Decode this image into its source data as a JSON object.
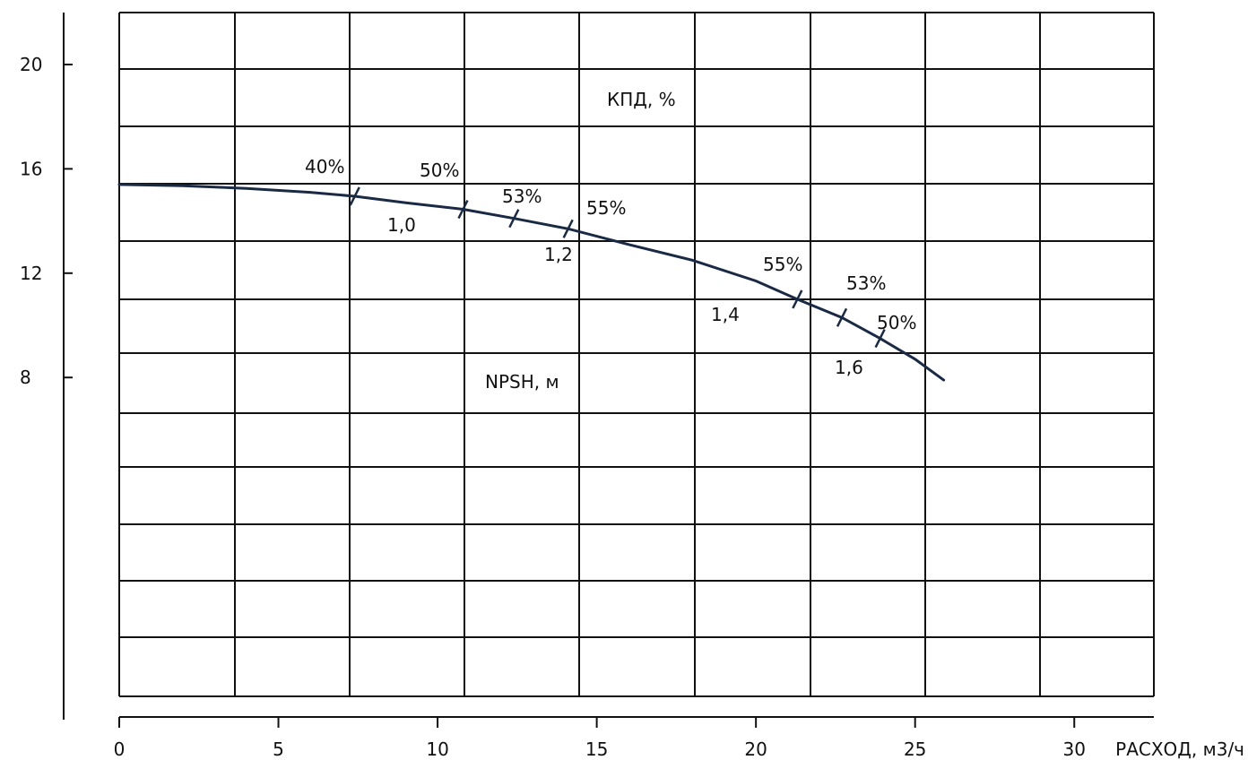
{
  "chart_data": {
    "type": "line",
    "x_axis": {
      "label": "РАСХОД, м3/ч",
      "range": [
        0,
        32.5
      ],
      "ticks": [
        0,
        5,
        10,
        15,
        20,
        25,
        30
      ],
      "tick_labels": [
        "0",
        "5",
        "10",
        "15",
        "20",
        "25",
        "30"
      ]
    },
    "y_axis": {
      "ticks": [
        20,
        16,
        12,
        8
      ],
      "tick_labels": [
        "20",
        "16",
        "12",
        "8"
      ],
      "range": [
        -4,
        22
      ]
    },
    "grid": true,
    "series": [
      {
        "color": "#1a2a44",
        "points": [
          [
            0,
            15.4
          ],
          [
            2,
            15.35
          ],
          [
            4,
            15.25
          ],
          [
            6,
            15.1
          ],
          [
            7.4,
            14.95
          ],
          [
            9,
            14.7
          ],
          [
            10.8,
            14.45
          ],
          [
            12.4,
            14.1
          ],
          [
            14.1,
            13.7
          ],
          [
            16,
            13.1
          ],
          [
            18,
            12.5
          ],
          [
            20,
            11.7
          ],
          [
            21.3,
            11.0
          ],
          [
            22.7,
            10.3
          ],
          [
            23.9,
            9.5
          ],
          [
            25,
            8.7
          ],
          [
            25.9,
            7.9
          ]
        ]
      }
    ],
    "efficiency_marks": [
      {
        "x": 7.4,
        "y": 14.95,
        "label": "40%"
      },
      {
        "x": 10.8,
        "y": 14.45,
        "label": "50%"
      },
      {
        "x": 12.4,
        "y": 14.1,
        "label": "53%"
      },
      {
        "x": 14.1,
        "y": 13.7,
        "label": "55%"
      },
      {
        "x": 21.3,
        "y": 11.0,
        "label": "55%"
      },
      {
        "x": 22.7,
        "y": 10.3,
        "label": "53%"
      },
      {
        "x": 23.9,
        "y": 9.5,
        "label": "50%"
      }
    ],
    "npsh_marks": [
      {
        "label": "1,0"
      },
      {
        "label": "1,2"
      },
      {
        "label": "1,4"
      },
      {
        "label": "1,6"
      }
    ],
    "annotations": [
      {
        "text": "КПД, %"
      },
      {
        "text": "NPSH, м"
      }
    ]
  }
}
